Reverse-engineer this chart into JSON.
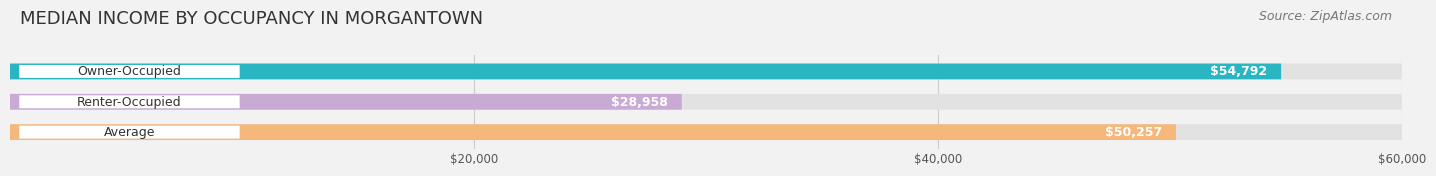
{
  "title": "MEDIAN INCOME BY OCCUPANCY IN MORGANTOWN",
  "source": "Source: ZipAtlas.com",
  "categories": [
    "Owner-Occupied",
    "Renter-Occupied",
    "Average"
  ],
  "values": [
    54792,
    28958,
    50257
  ],
  "bar_colors": [
    "#2ab5c2",
    "#c9aad4",
    "#f5b87a"
  ],
  "bar_labels": [
    "$54,792",
    "$28,958",
    "$50,257"
  ],
  "xlim": [
    0,
    60000
  ],
  "xticks": [
    20000,
    40000,
    60000
  ],
  "xtick_labels": [
    "$20,000",
    "$40,000",
    "$60,000"
  ],
  "background_color": "#f2f2f2",
  "bar_background_color": "#e2e2e2",
  "title_fontsize": 13,
  "source_fontsize": 9,
  "label_fontsize": 9,
  "value_fontsize": 9,
  "bar_height": 0.52
}
